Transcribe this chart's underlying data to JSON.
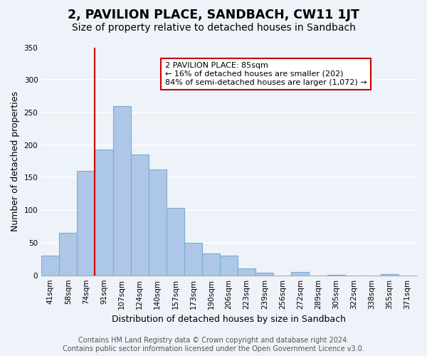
{
  "title": "2, PAVILION PLACE, SANDBACH, CW11 1JT",
  "subtitle": "Size of property relative to detached houses in Sandbach",
  "xlabel": "Distribution of detached houses by size in Sandbach",
  "ylabel": "Number of detached properties",
  "footer_line1": "Contains HM Land Registry data © Crown copyright and database right 2024.",
  "footer_line2": "Contains public sector information licensed under the Open Government Licence v3.0.",
  "bin_labels": [
    "41sqm",
    "58sqm",
    "74sqm",
    "91sqm",
    "107sqm",
    "124sqm",
    "140sqm",
    "157sqm",
    "173sqm",
    "190sqm",
    "206sqm",
    "223sqm",
    "239sqm",
    "256sqm",
    "272sqm",
    "289sqm",
    "305sqm",
    "322sqm",
    "338sqm",
    "355sqm",
    "371sqm"
  ],
  "bar_heights": [
    30,
    65,
    160,
    193,
    260,
    185,
    163,
    104,
    50,
    33,
    30,
    11,
    4,
    0,
    5,
    0,
    1,
    0,
    0,
    2,
    0
  ],
  "bar_color": "#aec6e8",
  "bar_edge_color": "#7aadd4",
  "vline_x_index": 3,
  "vline_color": "#cc0000",
  "annotation_text": "2 PAVILION PLACE: 85sqm\n← 16% of detached houses are smaller (202)\n84% of semi-detached houses are larger (1,072) →",
  "annotation_box_color": "#ffffff",
  "annotation_box_edge": "#cc0000",
  "ylim": [
    0,
    350
  ],
  "yticks": [
    0,
    50,
    100,
    150,
    200,
    250,
    300,
    350
  ],
  "background_color": "#eef2f9",
  "plot_bg_color": "#eef2f9",
  "title_fontsize": 12.5,
  "subtitle_fontsize": 10,
  "axis_label_fontsize": 9,
  "tick_fontsize": 7.5,
  "footer_fontsize": 7
}
